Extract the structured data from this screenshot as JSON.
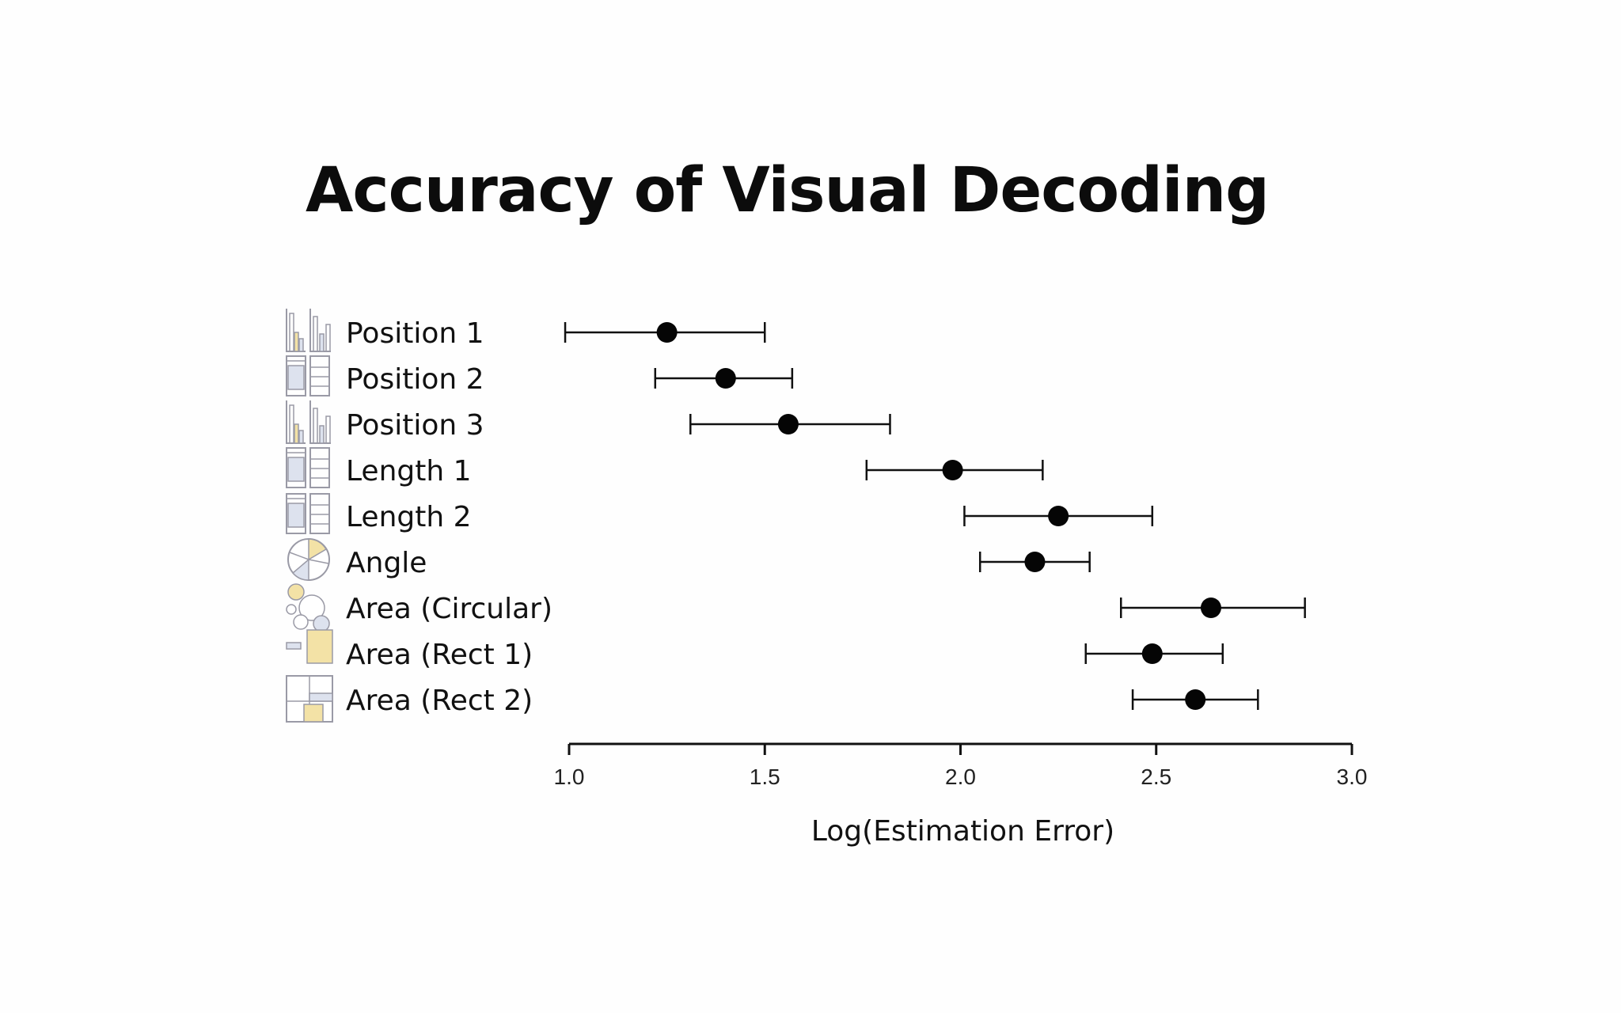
{
  "slide": {
    "title": "Accuracy of Visual Decoding"
  },
  "chart_data": {
    "type": "scatter",
    "title": "Accuracy of Visual Decoding",
    "xlabel": "Log(Estimation Error)",
    "ylabel": "",
    "xlim": [
      1.0,
      3.0
    ],
    "x_ticks": [
      "1.0",
      "1.5",
      "2.0",
      "2.5",
      "3.0"
    ],
    "grid": false,
    "error_bars": true,
    "rows": [
      {
        "label": "Position 1",
        "icon": "bar-chart-icon",
        "mean": 1.25,
        "low": 0.99,
        "high": 1.5
      },
      {
        "label": "Position 2",
        "icon": "stacked-bar-icon",
        "mean": 1.4,
        "low": 1.22,
        "high": 1.57
      },
      {
        "label": "Position 3",
        "icon": "bar-chart-icon",
        "mean": 1.56,
        "low": 1.31,
        "high": 1.82
      },
      {
        "label": "Length 1",
        "icon": "stacked-bar-icon",
        "mean": 1.98,
        "low": 1.76,
        "high": 2.21
      },
      {
        "label": "Length 2",
        "icon": "stacked-bar-icon",
        "mean": 2.25,
        "low": 2.01,
        "high": 2.49
      },
      {
        "label": "Angle",
        "icon": "pie-chart-icon",
        "mean": 2.19,
        "low": 2.05,
        "high": 2.33
      },
      {
        "label": "Area (Circular)",
        "icon": "bubble-chart-icon",
        "mean": 2.64,
        "low": 2.41,
        "high": 2.88
      },
      {
        "label": "Area (Rect 1)",
        "icon": "rectangle-area-icon",
        "mean": 2.49,
        "low": 2.32,
        "high": 2.67
      },
      {
        "label": "Area (Rect 2)",
        "icon": "treemap-icon",
        "mean": 2.6,
        "low": 2.44,
        "high": 2.76
      }
    ]
  },
  "colors": {
    "marker": "#050505",
    "line": "#111111",
    "icon_stroke": "#9a9aa6",
    "icon_fill_blue": "#dde2ee",
    "icon_fill_yellow": "#f3e2a6"
  }
}
